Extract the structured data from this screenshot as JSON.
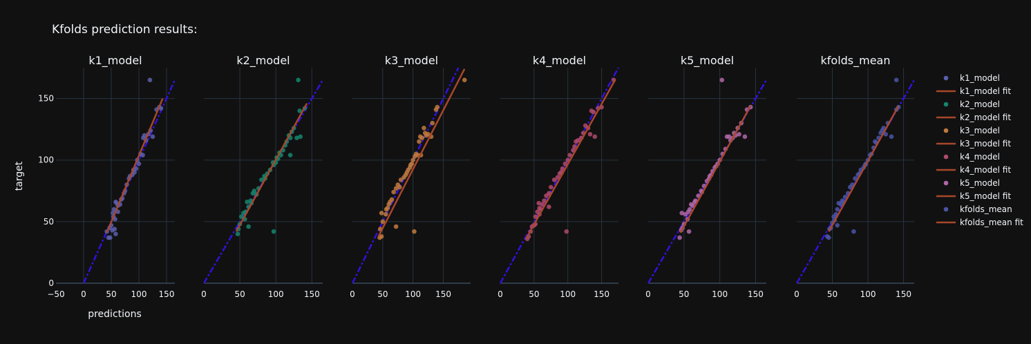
{
  "chart_data": {
    "type": "scatter",
    "title": "Kfolds prediction results:",
    "xlabel": "predictions",
    "ylabel": "target",
    "ylim": [
      0,
      175
    ],
    "yticks": [
      0,
      50,
      100,
      150
    ],
    "grid": true,
    "legend_position": "right",
    "colors": {
      "background": "#111111",
      "grid": "#283442",
      "fit_line": "#a8472b",
      "identity_line": "#3311dd"
    },
    "subplots": [
      {
        "name": "k1_model",
        "color": "#5a5fae",
        "xlim": [
          -50,
          165
        ],
        "xticks": [
          -50,
          0,
          50,
          100,
          150
        ],
        "fit": [
          [
            42,
            41
          ],
          [
            143,
            150
          ]
        ],
        "points": [
          [
            120,
            165
          ],
          [
            125,
            119
          ],
          [
            132,
            141
          ],
          [
            137,
            143
          ],
          [
            108,
            118
          ],
          [
            117,
            121
          ],
          [
            110,
            120
          ],
          [
            103,
            105
          ],
          [
            107,
            104
          ],
          [
            97,
            100
          ],
          [
            100,
            97
          ],
          [
            95,
            93
          ],
          [
            92,
            90
          ],
          [
            88,
            88
          ],
          [
            82,
            85
          ],
          [
            78,
            80
          ],
          [
            84,
            87
          ],
          [
            73,
            73
          ],
          [
            70,
            69
          ],
          [
            66,
            64
          ],
          [
            62,
            63
          ],
          [
            60,
            65
          ],
          [
            58,
            66
          ],
          [
            55,
            60
          ],
          [
            57,
            52
          ],
          [
            53,
            57
          ],
          [
            50,
            47
          ],
          [
            52,
            43
          ],
          [
            56,
            44
          ],
          [
            58,
            40
          ],
          [
            48,
            37
          ],
          [
            45,
            37
          ],
          [
            42,
            42
          ],
          [
            47,
            45
          ],
          [
            54,
            54
          ],
          [
            62,
            58
          ],
          [
            68,
            68
          ],
          [
            75,
            75
          ],
          [
            90,
            92
          ],
          [
            113,
            116
          ],
          [
            121,
            124
          ],
          [
            140,
            142
          ]
        ]
      },
      {
        "name": "k2_model",
        "color": "#14866d",
        "xlim": [
          0,
          165
        ],
        "xticks": [
          0,
          50,
          100,
          150
        ],
        "fit": [
          [
            45,
            42
          ],
          [
            143,
            146
          ]
        ],
        "points": [
          [
            131,
            165
          ],
          [
            133,
            140
          ],
          [
            134,
            119
          ],
          [
            129,
            118
          ],
          [
            125,
            126
          ],
          [
            118,
            120
          ],
          [
            120,
            118
          ],
          [
            113,
            112
          ],
          [
            110,
            108
          ],
          [
            107,
            104
          ],
          [
            103,
            101
          ],
          [
            100,
            98
          ],
          [
            97,
            96
          ],
          [
            96,
            98
          ],
          [
            92,
            92
          ],
          [
            88,
            89
          ],
          [
            84,
            87
          ],
          [
            80,
            84
          ],
          [
            76,
            77
          ],
          [
            70,
            75
          ],
          [
            68,
            73
          ],
          [
            65,
            67
          ],
          [
            62,
            62
          ],
          [
            60,
            66
          ],
          [
            58,
            58
          ],
          [
            55,
            57
          ],
          [
            52,
            54
          ],
          [
            50,
            48
          ],
          [
            48,
            44
          ],
          [
            47,
            40
          ],
          [
            62,
            46
          ],
          [
            97,
            42
          ],
          [
            120,
            104
          ],
          [
            140,
            142
          ],
          [
            122,
            123
          ],
          [
            115,
            115
          ],
          [
            105,
            106
          ],
          [
            85,
            85
          ],
          [
            73,
            72
          ],
          [
            57,
            52
          ],
          [
            66,
            65
          ],
          [
            101,
            102
          ]
        ]
      },
      {
        "name": "k3_model",
        "color": "#c07a3e",
        "xlim": [
          0,
          195
        ],
        "xticks": [
          0,
          50,
          100,
          150
        ],
        "fit": [
          [
            43,
            38
          ],
          [
            185,
            174
          ]
        ],
        "points": [
          [
            185,
            165
          ],
          [
            140,
            143
          ],
          [
            138,
            141
          ],
          [
            130,
            119
          ],
          [
            125,
            121
          ],
          [
            120,
            122
          ],
          [
            118,
            126
          ],
          [
            115,
            118
          ],
          [
            112,
            119
          ],
          [
            110,
            115
          ],
          [
            108,
            104
          ],
          [
            113,
            104
          ],
          [
            105,
            105
          ],
          [
            100,
            100
          ],
          [
            98,
            97
          ],
          [
            95,
            94
          ],
          [
            92,
            92
          ],
          [
            88,
            88
          ],
          [
            85,
            86
          ],
          [
            80,
            84
          ],
          [
            75,
            80
          ],
          [
            72,
            77
          ],
          [
            68,
            74
          ],
          [
            62,
            66
          ],
          [
            60,
            64
          ],
          [
            58,
            61
          ],
          [
            55,
            56
          ],
          [
            50,
            50
          ],
          [
            48,
            57
          ],
          [
            46,
            44
          ],
          [
            45,
            37
          ],
          [
            48,
            38
          ],
          [
            72,
            46
          ],
          [
            102,
            42
          ],
          [
            65,
            68
          ],
          [
            78,
            78
          ],
          [
            96,
            96
          ],
          [
            103,
            103
          ],
          [
            122,
            120
          ],
          [
            132,
            130
          ],
          [
            56,
            60
          ],
          [
            90,
            90
          ]
        ]
      },
      {
        "name": "k4_model",
        "color": "#b04a6a",
        "xlim": [
          0,
          175
        ],
        "xticks": [
          0,
          50,
          100,
          150
        ],
        "fit": [
          [
            38,
            36
          ],
          [
            170,
            165
          ]
        ],
        "points": [
          [
            168,
            165
          ],
          [
            150,
            143
          ],
          [
            145,
            142
          ],
          [
            135,
            140
          ],
          [
            140,
            119
          ],
          [
            133,
            121
          ],
          [
            130,
            126
          ],
          [
            123,
            122
          ],
          [
            120,
            118
          ],
          [
            115,
            116
          ],
          [
            110,
            111
          ],
          [
            108,
            108
          ],
          [
            103,
            104
          ],
          [
            100,
            100
          ],
          [
            96,
            97
          ],
          [
            92,
            93
          ],
          [
            88,
            89
          ],
          [
            85,
            86
          ],
          [
            80,
            84
          ],
          [
            75,
            78
          ],
          [
            72,
            73
          ],
          [
            68,
            71
          ],
          [
            65,
            67
          ],
          [
            62,
            64
          ],
          [
            58,
            61
          ],
          [
            55,
            58
          ],
          [
            52,
            54
          ],
          [
            50,
            47
          ],
          [
            47,
            46
          ],
          [
            45,
            42
          ],
          [
            42,
            38
          ],
          [
            40,
            36
          ],
          [
            57,
            65
          ],
          [
            72,
            62
          ],
          [
            98,
            42
          ],
          [
            58,
            56
          ],
          [
            60,
            60
          ],
          [
            90,
            90
          ],
          [
            126,
            128
          ],
          [
            112,
            115
          ],
          [
            138,
            139
          ],
          [
            52,
            48
          ]
        ]
      },
      {
        "name": "k5_model",
        "color": "#b067a8",
        "xlim": [
          0,
          165
        ],
        "xticks": [
          0,
          50,
          100,
          150
        ],
        "fit": [
          [
            45,
            41
          ],
          [
            143,
            144
          ]
        ],
        "points": [
          [
            103,
            165
          ],
          [
            143,
            143
          ],
          [
            138,
            141
          ],
          [
            135,
            119
          ],
          [
            127,
            121
          ],
          [
            125,
            126
          ],
          [
            120,
            122
          ],
          [
            118,
            118
          ],
          [
            113,
            119
          ],
          [
            108,
            109
          ],
          [
            104,
            105
          ],
          [
            100,
            100
          ],
          [
            97,
            97
          ],
          [
            93,
            94
          ],
          [
            90,
            91
          ],
          [
            86,
            87
          ],
          [
            82,
            83
          ],
          [
            78,
            79
          ],
          [
            74,
            75
          ],
          [
            70,
            71
          ],
          [
            66,
            67
          ],
          [
            62,
            63
          ],
          [
            60,
            64
          ],
          [
            58,
            60
          ],
          [
            56,
            58
          ],
          [
            52,
            56
          ],
          [
            50,
            48
          ],
          [
            48,
            45
          ],
          [
            46,
            43
          ],
          [
            44,
            37
          ],
          [
            47,
            57
          ],
          [
            57,
            42
          ],
          [
            110,
            119
          ],
          [
            115,
            116
          ],
          [
            95,
            95
          ],
          [
            85,
            85
          ],
          [
            65,
            66
          ],
          [
            122,
            120
          ],
          [
            130,
            130
          ],
          [
            75,
            74
          ],
          [
            55,
            52
          ],
          [
            88,
            88
          ]
        ]
      },
      {
        "name": "kfolds_mean",
        "color": "#4a55a6",
        "xlim": [
          0,
          165
        ],
        "xticks": [
          0,
          50,
          100,
          150
        ],
        "fit": [
          [
            45,
            42
          ],
          [
            143,
            144
          ]
        ],
        "points": [
          [
            140,
            165
          ],
          [
            143,
            143
          ],
          [
            140,
            141
          ],
          [
            133,
            119
          ],
          [
            125,
            121
          ],
          [
            122,
            126
          ],
          [
            118,
            122
          ],
          [
            115,
            118
          ],
          [
            110,
            115
          ],
          [
            108,
            110
          ],
          [
            103,
            104
          ],
          [
            100,
            100
          ],
          [
            97,
            97
          ],
          [
            94,
            94
          ],
          [
            90,
            92
          ],
          [
            86,
            88
          ],
          [
            82,
            85
          ],
          [
            78,
            80
          ],
          [
            75,
            78
          ],
          [
            72,
            73
          ],
          [
            68,
            70
          ],
          [
            64,
            67
          ],
          [
            62,
            64
          ],
          [
            59,
            65
          ],
          [
            57,
            60
          ],
          [
            55,
            56
          ],
          [
            52,
            54
          ],
          [
            50,
            49
          ],
          [
            48,
            45
          ],
          [
            46,
            44
          ],
          [
            45,
            37
          ],
          [
            43,
            38
          ],
          [
            57,
            47
          ],
          [
            80,
            42
          ],
          [
            65,
            66
          ],
          [
            88,
            89
          ],
          [
            96,
            96
          ],
          [
            105,
            105
          ],
          [
            112,
            114
          ],
          [
            120,
            124
          ],
          [
            128,
            130
          ],
          [
            53,
            51
          ]
        ]
      }
    ],
    "legend": [
      {
        "label": "k1_model",
        "kind": "marker",
        "color": "#5a5fae"
      },
      {
        "label": "k1_model fit",
        "kind": "line",
        "color": "#a8472b"
      },
      {
        "label": "k2_model",
        "kind": "marker",
        "color": "#14866d"
      },
      {
        "label": "k2_model fit",
        "kind": "line",
        "color": "#a8472b"
      },
      {
        "label": "k3_model",
        "kind": "marker",
        "color": "#c07a3e"
      },
      {
        "label": "k3_model fit",
        "kind": "line",
        "color": "#a8472b"
      },
      {
        "label": "k4_model",
        "kind": "marker",
        "color": "#b04a6a"
      },
      {
        "label": "k4_model fit",
        "kind": "line",
        "color": "#a8472b"
      },
      {
        "label": "k5_model",
        "kind": "marker",
        "color": "#b067a8"
      },
      {
        "label": "k5_model fit",
        "kind": "line",
        "color": "#a8472b"
      },
      {
        "label": "kfolds_mean",
        "kind": "marker",
        "color": "#4a55a6"
      },
      {
        "label": "kfolds_mean fit",
        "kind": "line",
        "color": "#a8472b"
      }
    ]
  }
}
